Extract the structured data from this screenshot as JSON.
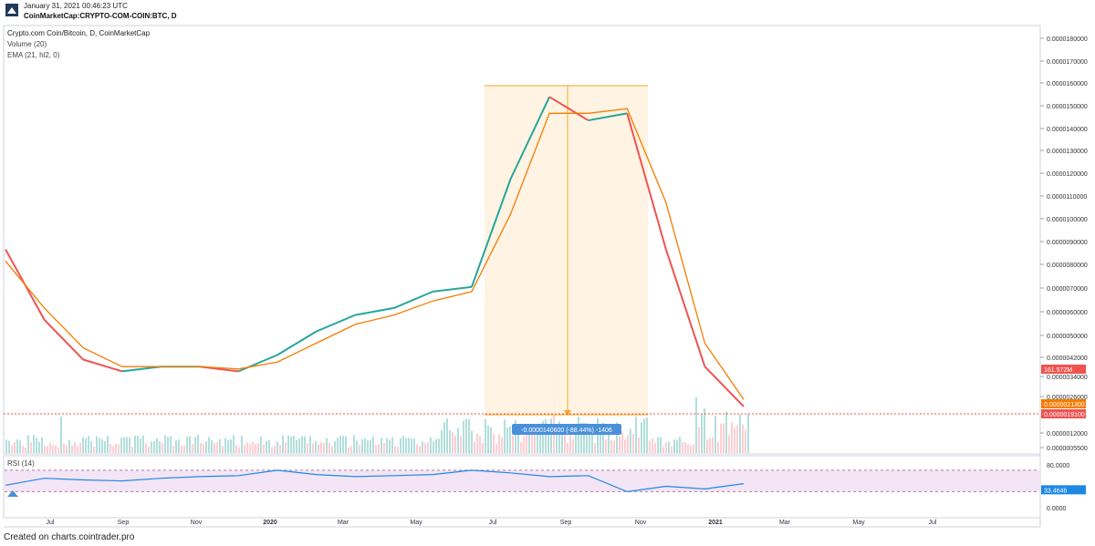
{
  "header": {
    "timestamp": "January 31, 2021 00:46:23 UTC",
    "source": "CoinMarketCap:CRYPTO-COM-COIN:BTC, D",
    "logo_icon": "tradingview-logo-icon"
  },
  "footer": {
    "text": "Created on charts.cointrader.pro"
  },
  "chart_data": [
    {
      "type": "line",
      "title": "Crypto.com Coin/Bitcoin, D, CoinMarketCap",
      "indicators": [
        "Volume (20)",
        "EMA (21, hl2, 0)"
      ],
      "yaxis_ticks": [
        "0.0000180000",
        "0.0000170000",
        "0.0000160000",
        "0.0000150000",
        "0.0000140000",
        "0.0000130000",
        "0.0000120000",
        "0.0000110000",
        "0.0000100000",
        "0.0000090000",
        "0.0000080000",
        "0.0000070000",
        "0.0000060000",
        "0.0000050000",
        "0.0000042000",
        "0.0000034000",
        "0.0000026000",
        "0.0000012000",
        "0.0000005500"
      ],
      "xaxis_ticks": [
        "Jul",
        "Sep",
        "Nov",
        "2020",
        "Mar",
        "May",
        "Jul",
        "Sep",
        "Nov",
        "2021",
        "Mar",
        "May",
        "Jul"
      ],
      "x": [
        "2019-06",
        "2019-07",
        "2019-08",
        "2019-09",
        "2019-10",
        "2019-11",
        "2019-12",
        "2020-01",
        "2020-02",
        "2020-03",
        "2020-04",
        "2020-05",
        "2020-06",
        "2020-07",
        "2020-08",
        "2020-09",
        "2020-10",
        "2020-11",
        "2020-12",
        "2021-01"
      ],
      "series": [
        {
          "values": [
            9e-06,
            6e-06,
            4.3e-06,
            3.8e-06,
            4e-06,
            4e-06,
            3.8e-06,
            4.5e-06,
            5.5e-06,
            6.2e-06,
            6.5e-06,
            7.2e-06,
            7.4e-06,
            1.2e-05,
            1.55e-05,
            1.45e-05,
            1.48e-05,
            9e-06,
            4e-06,
            2.3e-06
          ]
        },
        {
          "values": [
            8.5e-06,
            6.5e-06,
            4.8e-06,
            4e-06,
            4e-06,
            4e-06,
            3.9e-06,
            4.2e-06,
            5e-06,
            5.8e-06,
            6.2e-06,
            6.8e-06,
            7.2e-06,
            1.05e-05,
            1.48e-05,
            1.48e-05,
            1.5e-05,
            1.1e-05,
            5e-06,
            2.6e-06
          ]
        }
      ],
      "price_labels": {
        "volume": "161.572M",
        "ema": "0.0000021300",
        "last": "0.0000019100"
      },
      "colors": {
        "up": "#26a69a",
        "down": "#ef5350",
        "ema": "#f57c00",
        "range_fill": "#fff3e0",
        "range_line": "#f5a623",
        "measure_label": "#4a90d9"
      },
      "measure": {
        "text": "-0.0000140600 (-88.44%) -1406"
      }
    },
    {
      "type": "line",
      "title": "RSI (14)",
      "yaxis_ticks": [
        "80.0000",
        "0.0000"
      ],
      "last_value_label": "33.4646",
      "band": [
        30,
        70
      ],
      "series": [
        {
          "values": [
            42,
            55,
            52,
            50,
            55,
            58,
            60,
            70,
            62,
            58,
            60,
            62,
            70,
            65,
            58,
            60,
            30,
            40,
            35,
            45
          ]
        }
      ],
      "colors": {
        "line": "#1e88e5",
        "band_fill": "#f3e5f5",
        "band_line": "#b07aa1"
      }
    }
  ]
}
